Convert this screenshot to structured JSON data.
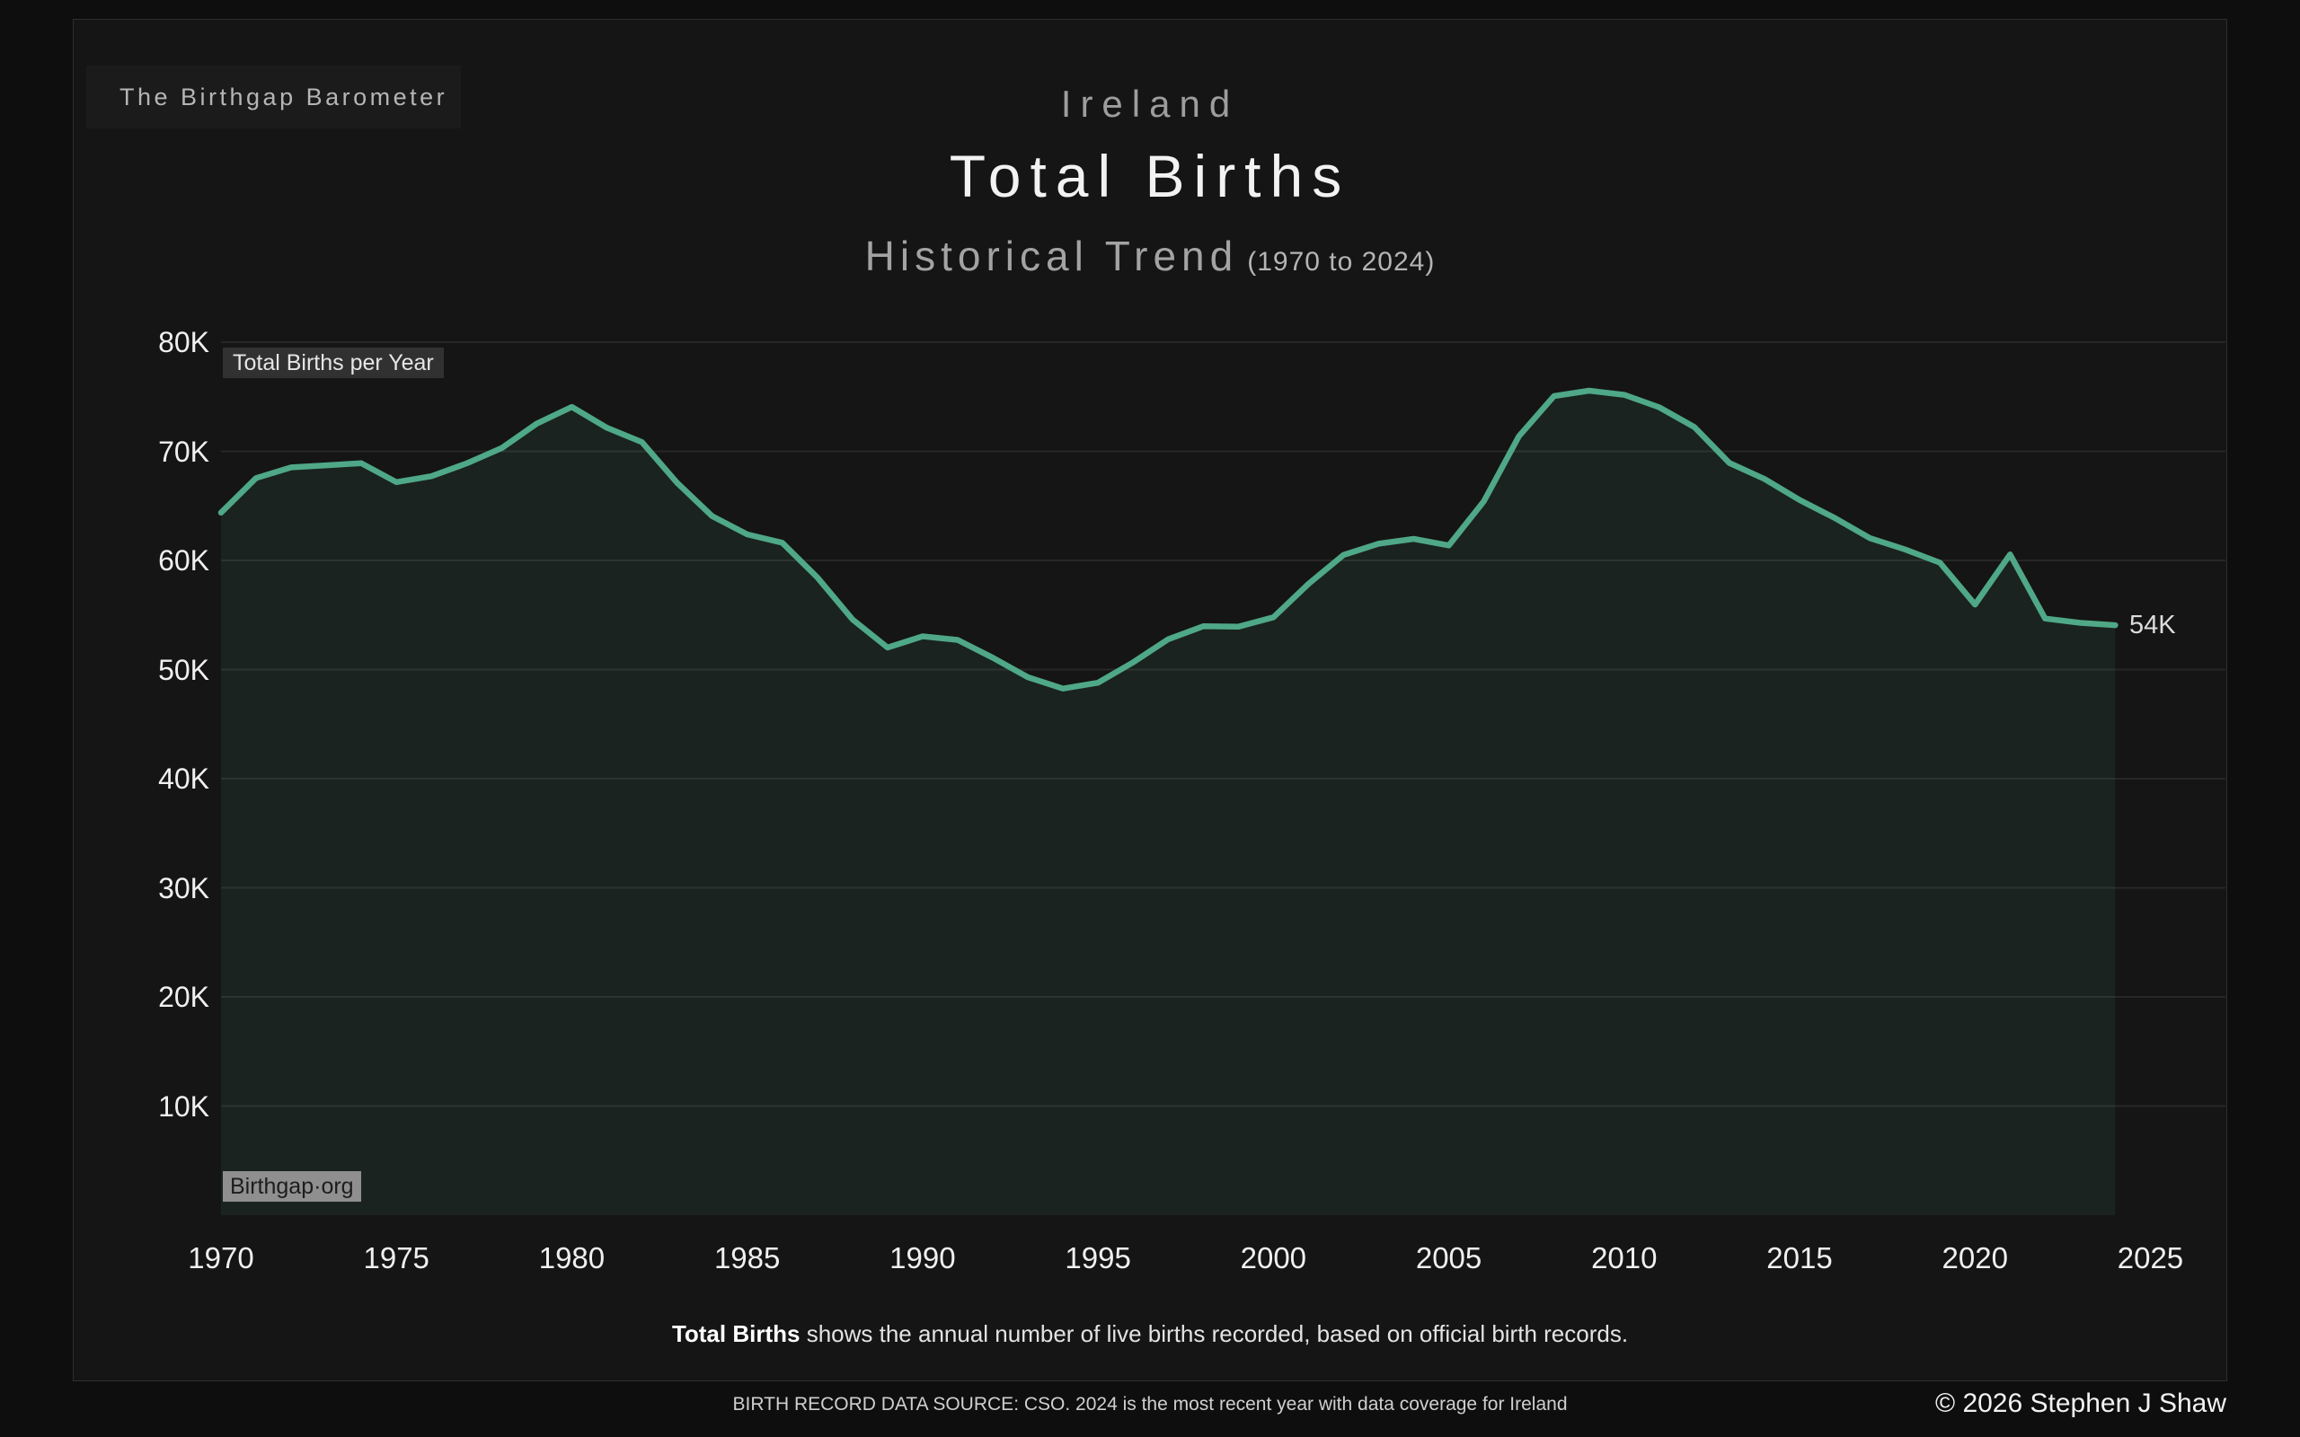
{
  "header": {
    "badge": "The Birthgap Barometer",
    "country": "Ireland",
    "title": "Total Births",
    "subtitle": "Historical Trend",
    "subtitle_range": "(1970 to 2024)"
  },
  "chart": {
    "series_label": "Total Births per Year",
    "end_label": "54K",
    "watermark": "Birthgap·org"
  },
  "caption": {
    "bold": "Total Births",
    "rest": " shows the annual number of live births recorded, based on official birth records."
  },
  "footer": {
    "source": "BIRTH RECORD DATA SOURCE: CSO. 2024 is the most recent year with data coverage for Ireland",
    "copyright": "© 2026 Stephen J Shaw"
  },
  "colors": {
    "accent_line": "#4FA887",
    "area_fill": "rgba(79,168,135,0.10)",
    "gridline": "rgba(255,255,255,0.08)",
    "card_bg": "#151515",
    "page_bg": "#0e0e0e"
  },
  "chart_data": {
    "type": "area",
    "title": "Ireland Total Births, Historical Trend (1970 to 2024)",
    "series_name": "Total Births per Year",
    "xlabel": "",
    "ylabel": "",
    "ylim": [
      0,
      80000
    ],
    "xlim": [
      1970,
      2025
    ],
    "grid": "horizontal",
    "legend_position": "none",
    "end_annotation": "54K",
    "x": [
      1970,
      1971,
      1972,
      1973,
      1974,
      1975,
      1976,
      1977,
      1978,
      1979,
      1980,
      1981,
      1982,
      1983,
      1984,
      1985,
      1986,
      1987,
      1988,
      1989,
      1990,
      1991,
      1992,
      1993,
      1994,
      1995,
      1996,
      1997,
      1998,
      1999,
      2000,
      2001,
      2002,
      2003,
      2004,
      2005,
      2006,
      2007,
      2008,
      2009,
      2010,
      2011,
      2012,
      2013,
      2014,
      2015,
      2016,
      2017,
      2018,
      2019,
      2020,
      2021,
      2022,
      2023,
      2024
    ],
    "values": [
      64382,
      67551,
      68527,
      68713,
      68907,
      67178,
      67718,
      68892,
      70299,
      72539,
      74064,
      72158,
      70843,
      67117,
      64062,
      62388,
      61620,
      58433,
      54600,
      52018,
      53044,
      52718,
      51089,
      49304,
      48255,
      48787,
      50655,
      52775,
      53969,
      53924,
      54789,
      57854,
      60503,
      61529,
      61972,
      61372,
      65425,
      71389,
      75065,
      75554,
      75174,
      74033,
      72225,
      68930,
      67462,
      65536,
      63897,
      62053,
      61016,
      59796,
      55959,
      60553,
      54678,
      54283,
      54062
    ],
    "y_ticks": [
      {
        "label": "10K",
        "value": 10000
      },
      {
        "label": "20K",
        "value": 20000
      },
      {
        "label": "30K",
        "value": 30000
      },
      {
        "label": "40K",
        "value": 40000
      },
      {
        "label": "50K",
        "value": 50000
      },
      {
        "label": "60K",
        "value": 60000
      },
      {
        "label": "70K",
        "value": 70000
      },
      {
        "label": "80K",
        "value": 80000
      }
    ],
    "x_ticks": [
      1970,
      1975,
      1980,
      1985,
      1990,
      1995,
      2000,
      2005,
      2010,
      2015,
      2020,
      2025
    ]
  }
}
